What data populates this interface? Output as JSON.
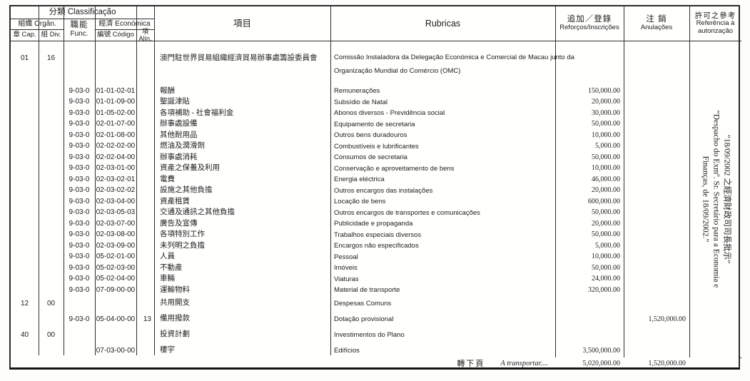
{
  "header": {
    "classificacao": "分類  Classificação",
    "orgao": "組織  Orgân.",
    "cap": "章 Cap.",
    "div": "組 Div.",
    "func_zh": "職能",
    "func_pt": "Func.",
    "economica": "經濟  Económica",
    "codigo": "編號 Código",
    "alin": "項Alín.",
    "item": "項目",
    "rubricas": "Rubricas",
    "reforcos_zh": "追加／登錄",
    "reforcos_pt": "Reforços/Inscrições",
    "anulacoes_zh": "注 銷",
    "anulacoes_pt": "Anulações",
    "ref_zh": "許可之參考",
    "ref_pt1": "Referência à",
    "ref_pt2": "autorização"
  },
  "rows": [
    {
      "kind": "org",
      "cap": "01",
      "div": "16",
      "item": "澳門駐世界貿易組織經濟貿易辦事處籌設委員會",
      "rubrica": "Comissão Instaladora da Delegação Económica e Comercial de Macau junto da",
      "rubrica2": "Organização Mundial do Comércio (OMC)"
    },
    {
      "kind": "std",
      "func": "9-03-0",
      "codigo": "01-01-02-01",
      "item": "報酬",
      "rubrica": "Remunerações",
      "reforcos": "150,000.00"
    },
    {
      "kind": "std",
      "func": "9-03-0",
      "codigo": "01-01-09-00",
      "item": "聖誕津貼",
      "rubrica": "Subsídio de Natal",
      "reforcos": "20,000.00"
    },
    {
      "kind": "std",
      "func": "9-03-0",
      "codigo": "01-05-02-00",
      "item": "各項補助 - 社會福利金",
      "rubrica": "Abonos diversos - Previdência social",
      "reforcos": "30,000.00"
    },
    {
      "kind": "std",
      "func": "9-03-0",
      "codigo": "02-01-07-00",
      "item": "辦事處設備",
      "rubrica": "Equipamento de secretaria",
      "reforcos": "50,000.00"
    },
    {
      "kind": "std",
      "func": "9-03-0",
      "codigo": "02-01-08-00",
      "item": "其他耐用品",
      "rubrica": "Outros bens duradouros",
      "reforcos": "10,000.00"
    },
    {
      "kind": "std",
      "func": "9-03-0",
      "codigo": "02-02-02-00",
      "item": "燃油及潤滑劑",
      "rubrica": "Combustíveis e lubrificantes",
      "reforcos": "5,000.00"
    },
    {
      "kind": "std",
      "func": "9-03-0",
      "codigo": "02-02-04-00",
      "item": "辦事處消耗",
      "rubrica": "Consumos de secretaria",
      "reforcos": "50,000.00"
    },
    {
      "kind": "std",
      "func": "9-03-0",
      "codigo": "02-03-01-00",
      "item": "資產之保養及利用",
      "rubrica": "Conservação e aproveitamento de bens",
      "reforcos": "10,000.00"
    },
    {
      "kind": "std",
      "func": "9-03-0",
      "codigo": "02-03-02-01",
      "item": "電費",
      "rubrica": "Energia eléctrica",
      "reforcos": "46,000.00"
    },
    {
      "kind": "std",
      "func": "9-03-0",
      "codigo": "02-03-02-02",
      "item": "設施之其他負擔",
      "rubrica": "Outros encargos das instalações",
      "reforcos": "20,000.00"
    },
    {
      "kind": "std",
      "func": "9-03-0",
      "codigo": "02-03-04-00",
      "item": "資產租賃",
      "rubrica": "Locação de bens",
      "reforcos": "600,000.00"
    },
    {
      "kind": "std",
      "func": "9-03-0",
      "codigo": "02-03-05-03",
      "item": "交通及通訊之其他負擔",
      "rubrica": "Outros encargos de transportes e comunicações",
      "reforcos": "50,000.00"
    },
    {
      "kind": "std",
      "func": "9-03-0",
      "codigo": "02-03-07-00",
      "item": "廣告及宣傳",
      "rubrica": "Publicidade e propaganda",
      "reforcos": "20,000.00"
    },
    {
      "kind": "std",
      "func": "9-03-0",
      "codigo": "02-03-08-00",
      "item": "各項特別工作",
      "rubrica": "Trabalhos especiais diversos",
      "reforcos": "50,000.00"
    },
    {
      "kind": "std",
      "func": "9-03-0",
      "codigo": "02-03-09-00",
      "item": "未列明之負擔",
      "rubrica": "Encargos não especificados",
      "reforcos": "5,000.00"
    },
    {
      "kind": "std",
      "func": "9-03-0",
      "codigo": "05-02-01-00",
      "item": "人員",
      "rubrica": "Pessoal",
      "reforcos": "10,000.00"
    },
    {
      "kind": "std",
      "func": "9-03-0",
      "codigo": "05-02-03-00",
      "item": "不動產",
      "rubrica": "Imóveis",
      "reforcos": "50,000.00"
    },
    {
      "kind": "std",
      "func": "9-03-0",
      "codigo": "05-02-04-00",
      "item": "車輛",
      "rubrica": "Viaturas",
      "reforcos": "24,000.00"
    },
    {
      "kind": "std",
      "func": "9-03-0",
      "codigo": "07-09-00-00",
      "item": "運輸物料",
      "rubrica": "Material de transporte",
      "reforcos": "320,000.00"
    },
    {
      "kind": "tall",
      "cap": "12",
      "div": "00",
      "item": "共用開支",
      "rubrica": "Despesas Comuns"
    },
    {
      "kind": "tall",
      "func": "9-03-0",
      "codigo": "05-04-00-00",
      "alin": "13",
      "item": "備用撥款",
      "rubrica": "Dotação provisional",
      "anulacoes": "1,520,000.00"
    },
    {
      "kind": "tall",
      "cap": "40",
      "div": "00",
      "item": "投資計劃",
      "rubrica": "Investimentos do Plano"
    },
    {
      "kind": "tall",
      "codigo": "07-03-00-00",
      "item": "樓宇",
      "rubrica": "Edifícios",
      "reforcos": "3,500,000.00"
    }
  ],
  "footer": {
    "zh": "轉下頁",
    "pt": "A transportar....",
    "reforcos_total": "5,020,000.00",
    "anulacoes_total": "1,520,000.00"
  },
  "remark": {
    "line1": "“18/09/2002 之經濟財政司司長批示”",
    "line2": "“Despacho do Exmº. Sr. Secretário para a Economia e",
    "line3": "Finanças, de 18/09/2002.”"
  }
}
